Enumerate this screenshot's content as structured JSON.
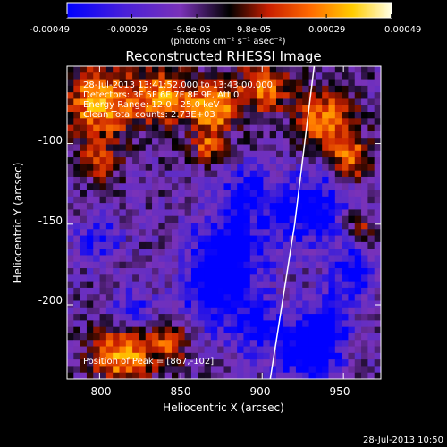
{
  "chart_data": {
    "type": "heatmap",
    "title": "Reconstructed RHESSI Image",
    "xlabel": "Heliocentric X (arcsec)",
    "ylabel": "Heliocentric Y (arcsec)",
    "xlim": [
      780,
      973
    ],
    "ylim": [
      -246,
      -52
    ],
    "x_ticks": [
      800,
      850,
      900,
      950
    ],
    "y_ticks": [
      -100,
      -150,
      -200
    ],
    "colorbar": {
      "ticks": [
        "-0.00049",
        "-0.00029",
        "-9.8e-05",
        "9.8e-05",
        "0.00029",
        "0.00049"
      ],
      "range": [
        -0.00049,
        0.00049
      ],
      "unit_label": "(photons cm⁻² s⁻¹ asec⁻²)"
    },
    "annotations": [
      "28-Jul-2013 13:41:52.000 to 13:43:00.000",
      "Detectors: 3F 5F 6F 7F 8F 9F, Att 0",
      "Energy Range: 12.0 - 25.0 keV",
      "Clean     Total counts: 2.73E+03"
    ],
    "peak_label": "Position of Peak = [867,-102]",
    "limb": {
      "points": [
        [
          932,
          -52
        ],
        [
          920,
          -150
        ],
        [
          905,
          -246
        ]
      ]
    },
    "color_stops": [
      "#0000ff",
      "#5a2cc8",
      "#7a32b8",
      "#000000",
      "#c81e00",
      "#ff7800",
      "#ffcc00",
      "#ffffdc"
    ]
  },
  "footer_timestamp": "28-Jul-2013 10:50"
}
